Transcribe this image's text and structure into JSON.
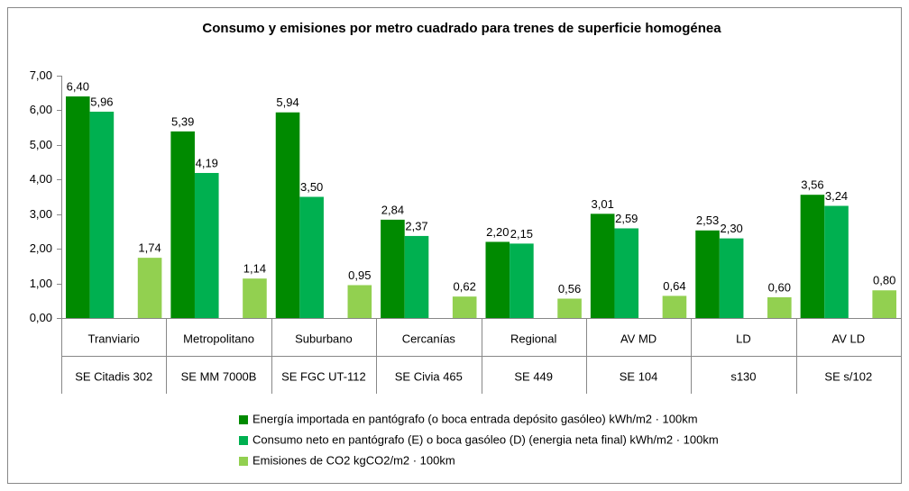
{
  "chart_data": {
    "type": "bar",
    "title": "Consumo y emisiones por metro cuadrado para trenes de superficie homogénea",
    "categories": [
      "Tranviario",
      "Metropolitano",
      "Suburbano",
      "Cercanías",
      "Regional",
      "AV MD",
      "LD",
      "AV LD"
    ],
    "subcategories": [
      "SE Citadis 302",
      "SE MM 7000B",
      "SE FGC UT-112",
      "SE Civia 465",
      "SE 449",
      "SE 104",
      "s130",
      "SE s/102"
    ],
    "series": [
      {
        "name": "Energía importada en pantógrafo (o boca entrada depósito gasóleo) kWh/m2 · 100km",
        "color": "#008a00",
        "values": [
          6.4,
          5.39,
          5.94,
          2.84,
          2.2,
          3.01,
          2.53,
          3.56
        ],
        "value_labels": [
          "6,40",
          "5,39",
          "5,94",
          "2,84",
          "2,20",
          "3,01",
          "2,53",
          "3,56"
        ]
      },
      {
        "name": "Consumo neto en pantógrafo (E) o boca gasóleo (D) (energia neta final) kWh/m2 · 100km",
        "color": "#00b050",
        "values": [
          5.96,
          4.19,
          3.5,
          2.37,
          2.15,
          2.59,
          2.3,
          3.24
        ],
        "value_labels": [
          "5,96",
          "4,19",
          "3,50",
          "2,37",
          "2,15",
          "2,59",
          "2,30",
          "3,24"
        ]
      },
      {
        "name": "Emisiones de CO2 kgCO2/m2 · 100km",
        "color": "#92d050",
        "values": [
          1.74,
          1.14,
          0.95,
          0.62,
          0.56,
          0.64,
          0.6,
          0.8
        ],
        "value_labels": [
          "1,74",
          "1,14",
          "0,95",
          "0,62",
          "0,56",
          "0,64",
          "0,60",
          "0,80"
        ]
      }
    ],
    "ylim": [
      0,
      7
    ],
    "yticks": [
      {
        "value": 0,
        "label": "0,00"
      },
      {
        "value": 1,
        "label": "1,00"
      },
      {
        "value": 2,
        "label": "2,00"
      },
      {
        "value": 3,
        "label": "3,00"
      },
      {
        "value": 4,
        "label": "4,00"
      },
      {
        "value": 5,
        "label": "5,00"
      },
      {
        "value": 6,
        "label": "6,00"
      },
      {
        "value": 7,
        "label": "7,00"
      }
    ],
    "grid": false
  }
}
